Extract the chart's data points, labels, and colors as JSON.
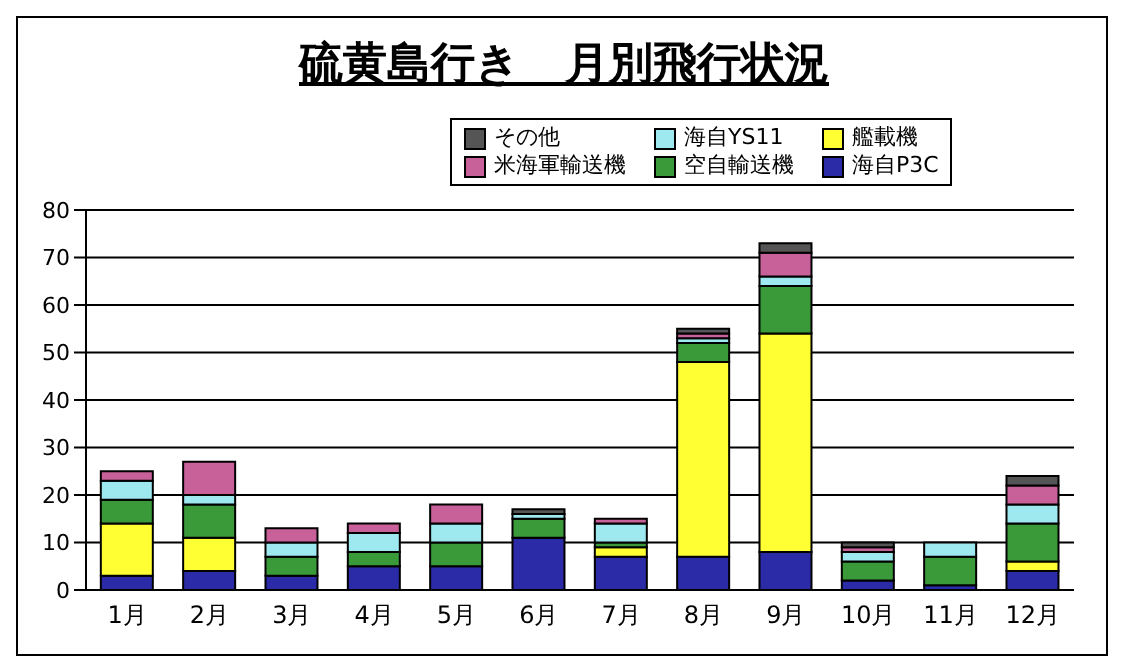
{
  "chart_data": {
    "type": "bar",
    "title": "硫黄島行き　月別飛行状況",
    "categories": [
      "1月",
      "2月",
      "3月",
      "4月",
      "5月",
      "6月",
      "7月",
      "8月",
      "9月",
      "10月",
      "11月",
      "12月"
    ],
    "stacked": true,
    "ylim": [
      0,
      80
    ],
    "yticks": [
      0,
      10,
      20,
      30,
      40,
      50,
      60,
      70,
      80
    ],
    "grid": "y",
    "legend": "top right",
    "series": [
      {
        "name": "海自P3C",
        "color": "#2b2ba8",
        "values": [
          3,
          4,
          3,
          5,
          5,
          11,
          7,
          7,
          8,
          2,
          1,
          4
        ]
      },
      {
        "name": "艦載機",
        "color": "#ffff33",
        "values": [
          11,
          7,
          0,
          0,
          0,
          0,
          2,
          41,
          46,
          0,
          0,
          2
        ]
      },
      {
        "name": "空自輸送機",
        "color": "#3a9a3a",
        "values": [
          5,
          7,
          4,
          3,
          5,
          4,
          1,
          4,
          10,
          4,
          6,
          8
        ]
      },
      {
        "name": "海自YS11",
        "color": "#9ee8f0",
        "values": [
          4,
          2,
          3,
          4,
          4,
          1,
          4,
          1,
          2,
          2,
          3,
          4
        ]
      },
      {
        "name": "米海軍輸送機",
        "color": "#c8609a",
        "values": [
          2,
          7,
          3,
          2,
          4,
          0,
          1,
          1,
          5,
          1,
          0,
          4
        ]
      },
      {
        "name": "その他",
        "color": "#555555",
        "values": [
          0,
          0,
          0,
          0,
          0,
          1,
          0,
          1,
          2,
          1,
          0,
          2
        ]
      }
    ]
  }
}
